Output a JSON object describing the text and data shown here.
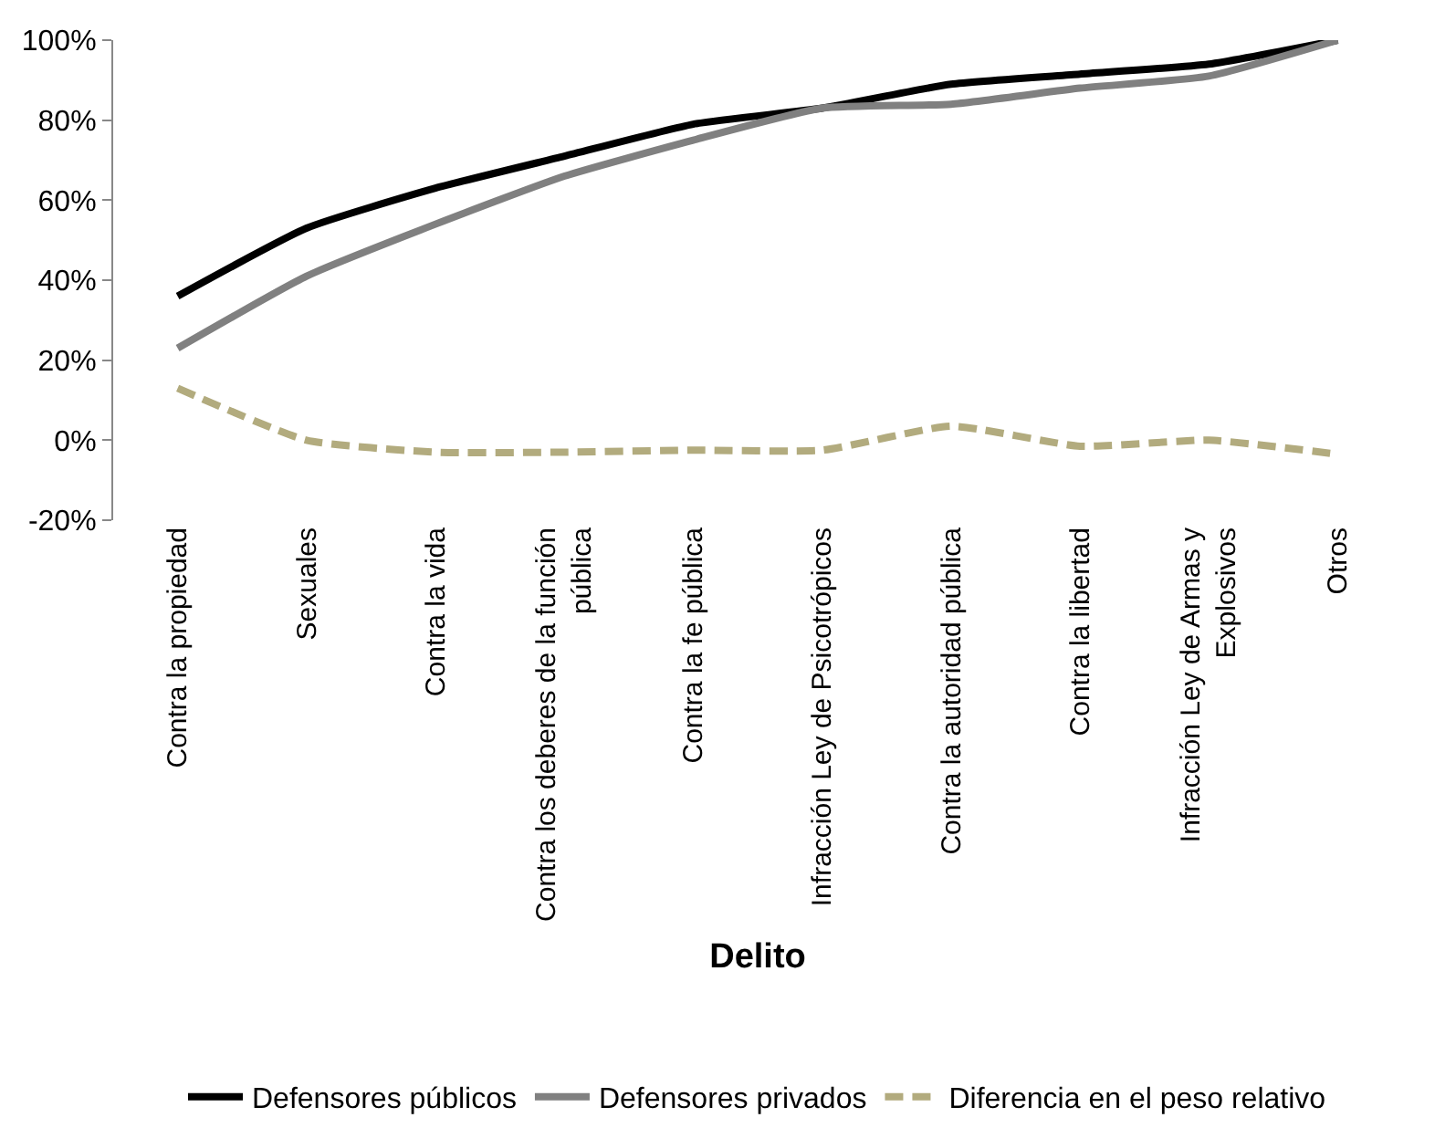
{
  "chart_data": {
    "type": "line",
    "xlabel": "Delito",
    "categories": [
      "Contra la propiedad",
      "Sexuales",
      "Contra la vida",
      "Contra los deberes de la función pública",
      "Contra la fe pública",
      "Infracción Ley de Psicotrópicos",
      "Contra la autoridad pública",
      "Contra la libertad",
      "Infracción Ley de Armas y Explosivos",
      "Otros"
    ],
    "series": [
      {
        "name": "Defensores públicos",
        "color": "#000000",
        "line_style": "solid",
        "values": [
          36,
          53,
          63,
          71,
          79,
          83,
          89,
          91.5,
          94,
          100
        ]
      },
      {
        "name": "Defensores privados",
        "color": "#808080",
        "line_style": "solid",
        "values": [
          23,
          41,
          54,
          66,
          75,
          83,
          84,
          88,
          91,
          100
        ]
      },
      {
        "name": "Diferencia en el peso relativo",
        "color": "#b2ab7e",
        "line_style": "dashed",
        "values": [
          13,
          0,
          -3,
          -3,
          -2.5,
          -2.5,
          3.5,
          -1.5,
          0,
          -3.5
        ]
      }
    ],
    "ylim": [
      -20,
      100
    ],
    "yticks": [
      {
        "value": -20,
        "label": "-20%"
      },
      {
        "value": 0,
        "label": "0%"
      },
      {
        "value": 20,
        "label": "20%"
      },
      {
        "value": 40,
        "label": "40%"
      },
      {
        "value": 60,
        "label": "60%"
      },
      {
        "value": 80,
        "label": "80%"
      },
      {
        "value": 100,
        "label": "100%"
      }
    ],
    "grid": false,
    "legend": "bottom",
    "marker": "none"
  }
}
